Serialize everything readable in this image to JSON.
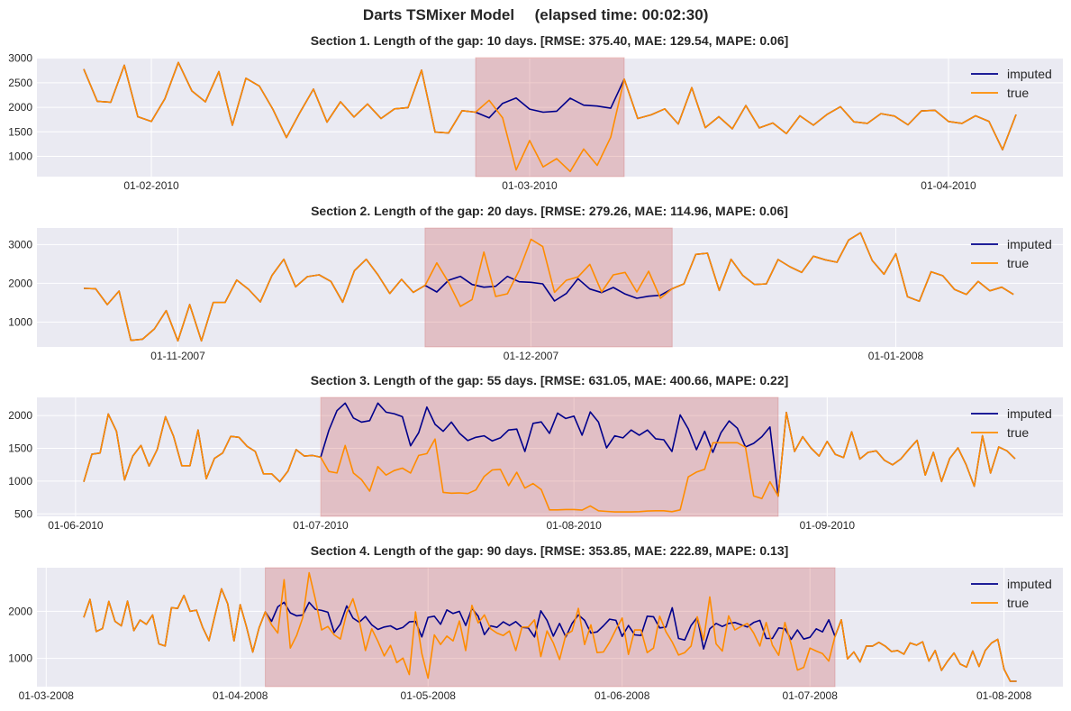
{
  "title": "Darts TSMixer Model",
  "elapsed": "(elapsed time: 00:02:30)",
  "colors": {
    "imputed": "#00008b",
    "true": "#ff8c00",
    "gap": "#cd5c5c",
    "background": "#eaeaf2",
    "grid": "#ffffff"
  },
  "chart_data": [
    {
      "type": "line",
      "title": "Section 1.  Length of the gap: 10 days.  [RMSE: 375.40, MAE: 129.54, MAPE: 0.06]",
      "legend": [
        "imputed",
        "true"
      ],
      "legend_position": "top-right",
      "grid": true,
      "ylim": [
        586,
        3012
      ],
      "xlim": [
        -3.47,
        72.47
      ],
      "yticks": [
        {
          "v": 3000,
          "label": "3000"
        },
        {
          "v": 2500,
          "label": "2500"
        },
        {
          "v": 2000,
          "label": "2000"
        },
        {
          "v": 1500,
          "label": "1500"
        },
        {
          "v": 1000,
          "label": "1000"
        }
      ],
      "xticks": [
        {
          "v": 5,
          "label": "01-02-2010"
        },
        {
          "v": 33,
          "label": "01-03-2010"
        },
        {
          "v": 64,
          "label": "01-04-2010"
        }
      ],
      "gap": {
        "start": 30,
        "length": 10
      },
      "true": [
        2778,
        2123,
        2105,
        2858,
        1809,
        1710,
        2173,
        2914,
        2333,
        2111,
        2728,
        1636,
        2593,
        2432,
        1957,
        1383,
        1895,
        2370,
        1698,
        2111,
        1802,
        2068,
        1772,
        1969,
        1994,
        2759,
        1494,
        1475,
        1932,
        1901,
        2142,
        1784,
        722,
        1321,
        784,
        951,
        691,
        1148,
        815,
        1389,
        2574,
        1772,
        1846,
        1969,
        1660,
        2401,
        1586,
        1809,
        1562,
        2037,
        1580,
        1679,
        1463,
        1827,
        1636,
        1852,
        2012,
        1704,
        1673,
        1870,
        1821,
        1642,
        1926,
        1938,
        1710,
        1673,
        1827,
        1710,
        1136,
        1852
      ],
      "imputed_gap": [
        1784,
        2080,
        2191,
        1963,
        1901,
        1920,
        2185,
        2043,
        2025,
        1981
      ]
    },
    {
      "type": "line",
      "title": "Section 2.  Length of the gap: 20 days.  [RMSE: 279.26, MAE: 114.96, MAPE: 0.06]",
      "legend": [
        "imputed",
        "true"
      ],
      "legend_position": "top-right",
      "grid": true,
      "ylim": [
        357,
        3426
      ],
      "xlim": [
        -3.98,
        83.2
      ],
      "yticks": [
        {
          "v": 3000,
          "label": "3000"
        },
        {
          "v": 2000,
          "label": "2000"
        },
        {
          "v": 1000,
          "label": "1000"
        }
      ],
      "xticks": [
        {
          "v": 8,
          "label": "01-11-2007"
        },
        {
          "v": 38,
          "label": "01-12-2007"
        },
        {
          "v": 69,
          "label": "01-01-2008"
        }
      ],
      "gap": {
        "start": 30,
        "length": 20
      },
      "true": [
        1868,
        1860,
        1450,
        1798,
        527,
        558,
        822,
        1295,
        512,
        1450,
        512,
        1504,
        1504,
        2085,
        1845,
        1519,
        2202,
        2620,
        1907,
        2171,
        2217,
        2047,
        1512,
        2326,
        2620,
        2217,
        1736,
        2101,
        1767,
        1946,
        2527,
        2023,
        1403,
        1581,
        2806,
        1659,
        1729,
        2333,
        3132,
        2946,
        1767,
        2078,
        2163,
        2488,
        1775,
        2217,
        2279,
        1775,
        2310,
        1612,
        1860,
        1984,
        2744,
        2775,
        1814,
        2620,
        2202,
        1969,
        1984,
        2612,
        2426,
        2279,
        2698,
        2605,
        2543,
        3116,
        3302,
        2589,
        2233,
        2760,
        1651,
        1535,
        2295,
        2194,
        1837,
        1713,
        2047,
        1806,
        1899,
        1713
      ],
      "imputed_gap": [
        1775,
        2078,
        2178,
        1969,
        1899,
        1922,
        2178,
        2039,
        2023,
        1984,
        1543,
        1736,
        2116,
        1853,
        1760,
        1891,
        1721,
        1612,
        1667,
        1690
      ]
    },
    {
      "type": "line",
      "title": "Section 3.  Length of the gap: 55 days.  [RMSE: 631.05, MAE: 400.66, MAPE: 0.22]",
      "legend": [
        "imputed",
        "true"
      ],
      "legend_position": "top-right",
      "grid": true,
      "ylim": [
        463,
        2276
      ],
      "xlim": [
        -5.73,
        119.85
      ],
      "yticks": [
        {
          "v": 2000,
          "label": "2000"
        },
        {
          "v": 1500,
          "label": "1500"
        },
        {
          "v": 1000,
          "label": "1000"
        },
        {
          "v": 500,
          "label": "500"
        }
      ],
      "xticks": [
        {
          "v": -1,
          "label": "01-06-2010"
        },
        {
          "v": 29,
          "label": "01-07-2010"
        },
        {
          "v": 60,
          "label": "01-08-2010"
        },
        {
          "v": 91,
          "label": "01-09-2010"
        }
      ],
      "gap": {
        "start": 30,
        "length": 55
      },
      "true": [
        991,
        1410,
        1429,
        2023,
        1760,
        1018,
        1382,
        1544,
        1230,
        1484,
        1982,
        1682,
        1235,
        1235,
        1779,
        1037,
        1346,
        1429,
        1682,
        1668,
        1530,
        1452,
        1111,
        1111,
        991,
        1152,
        1479,
        1382,
        1392,
        1364,
        1147,
        1124,
        1544,
        1124,
        1023,
        848,
        1221,
        1092,
        1161,
        1198,
        1124,
        1392,
        1419,
        1641,
        829,
        816,
        820,
        811,
        866,
        1069,
        1171,
        1180,
        931,
        1134,
        894,
        963,
        871,
        562,
        562,
        567,
        567,
        558,
        622,
        548,
        539,
        530,
        530,
        530,
        535,
        544,
        548,
        548,
        535,
        562,
        1065,
        1138,
        1180,
        1585,
        1585,
        1585,
        1585,
        1516,
        774,
        733,
        991,
        770,
        2046,
        1452,
        1677,
        1507,
        1382,
        1604,
        1406,
        1359,
        1751,
        1336,
        1438,
        1461,
        1318,
        1249,
        1336,
        1484,
        1622,
        1092,
        1438,
        995,
        1346,
        1507,
        1253,
        922,
        1691,
        1124,
        1521,
        1461,
        1341
      ],
      "imputed_gap": [
        1774,
        2074,
        2189,
        1963,
        1899,
        1922,
        2189,
        2051,
        2028,
        1982,
        1539,
        1737,
        2129,
        1866,
        1760,
        1899,
        1728,
        1618,
        1668,
        1691,
        1613,
        1659,
        1779,
        1793,
        1452,
        1880,
        1903,
        1728,
        2037,
        1954,
        1991,
        1700,
        2055,
        1899,
        1507,
        1691,
        1659,
        1779,
        1700,
        1779,
        1645,
        1631,
        1452,
        2009,
        1797,
        1479,
        1760,
        1438,
        1737,
        1917,
        1806,
        1521,
        1576,
        1677,
        1825
      ]
    },
    {
      "type": "line",
      "title": "Section 4.  Length of the gap: 90 days.  [RMSE: 353.85, MAE: 222.89, MAPE: 0.13]",
      "legend": [
        "imputed",
        "true"
      ],
      "legend_position": "top-right",
      "grid": true,
      "ylim": [
        397,
        2929
      ],
      "xlim": [
        -7.48,
        156.4
      ],
      "yticks": [
        {
          "v": 2000,
          "label": "2000"
        },
        {
          "v": 1000,
          "label": "1000"
        }
      ],
      "xticks": [
        {
          "v": -6,
          "label": "01-03-2008"
        },
        {
          "v": 25,
          "label": "01-04-2008"
        },
        {
          "v": 55,
          "label": "01-05-2008"
        },
        {
          "v": 86,
          "label": "01-06-2008"
        },
        {
          "v": 116,
          "label": "01-07-2008"
        },
        {
          "v": 147,
          "label": "01-08-2008"
        }
      ],
      "gap": {
        "start": 30,
        "length": 90
      },
      "true": [
        1872,
        2256,
        1571,
        1635,
        2212,
        1788,
        1692,
        2218,
        1590,
        1814,
        1724,
        1923,
        1308,
        1263,
        2077,
        2064,
        2340,
        2000,
        2026,
        1660,
        1378,
        1936,
        2481,
        2160,
        1372,
        2141,
        1667,
        1135,
        1647,
        1987,
        1712,
        1538,
        2673,
        1218,
        1487,
        1872,
        2821,
        2256,
        1603,
        1679,
        1500,
        1410,
        1968,
        2269,
        1808,
        1167,
        1628,
        1359,
        1051,
        1276,
        910,
        1006,
        654,
        1987,
        1103,
        577,
        1500,
        1295,
        1474,
        1372,
        1795,
        1167,
        2128,
        1756,
        1923,
        1628,
        1538,
        1487,
        1583,
        1167,
        1667,
        1667,
        1821,
        1038,
        1583,
        1327,
        974,
        1500,
        1583,
        2064,
        1295,
        1712,
        1122,
        1135,
        1346,
        1615,
        1859,
        1083,
        1603,
        1603,
        1122,
        1218,
        1897,
        1564,
        1346,
        1071,
        1122,
        1263,
        1885,
        1391,
        2308,
        1308,
        1154,
        1904,
        1603,
        1679,
        1744,
        1538,
        1263,
        1763,
        1282,
        1064,
        1763,
        1295,
        750,
        808,
        1218,
        1154,
        1103,
        942,
        1468,
        1821,
        987,
        1135,
        923,
        1263,
        1263,
        1340,
        1263,
        1147,
        1167,
        1090,
        1327,
        1282,
        1353,
        942,
        1167,
        744,
        942,
        1115,
        878,
        814,
        1154,
        827,
        1167,
        1327,
        1404,
        769,
        513,
        513
      ],
      "imputed_gap": [
        1788,
        2096,
        2192,
        1968,
        1904,
        1923,
        2192,
        2045,
        2019,
        1981,
        1551,
        1731,
        2115,
        1859,
        1769,
        1891,
        1712,
        1615,
        1667,
        1692,
        1615,
        1660,
        1776,
        1788,
        1455,
        1872,
        1897,
        1724,
        2032,
        1955,
        2000,
        1699,
        2064,
        1897,
        1506,
        1692,
        1660,
        1776,
        1699,
        1782,
        1660,
        1647,
        1455,
        2013,
        1808,
        1474,
        1744,
        1455,
        1744,
        1923,
        1808,
        1538,
        1564,
        1692,
        1833,
        1808,
        1468,
        1699,
        1500,
        1487,
        1897,
        1885,
        1647,
        1667,
        2077,
        1423,
        1391,
        1699,
        1872,
        1199,
        1628,
        1744,
        1679,
        1744,
        1763,
        1712,
        1667,
        1763,
        1808,
        1423,
        1423,
        1647,
        1628,
        1404,
        1603,
        1410,
        1449,
        1628,
        1564,
        1821
      ]
    }
  ]
}
